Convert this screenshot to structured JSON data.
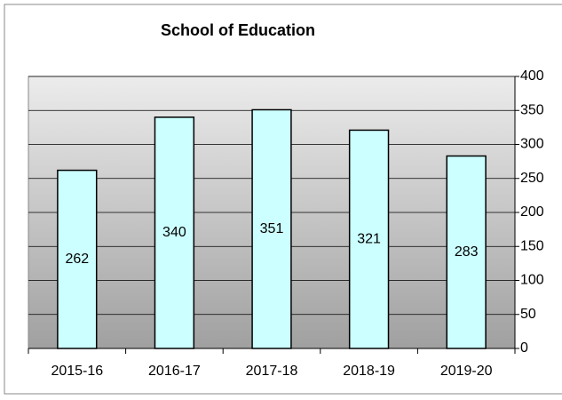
{
  "chart_data": {
    "type": "bar",
    "title": "School of Education",
    "categories": [
      "2015-16",
      "2016-17",
      "2017-18",
      "2018-19",
      "2019-20"
    ],
    "values": [
      262,
      340,
      351,
      321,
      283
    ],
    "color": "#ccffff",
    "ylim": [
      0,
      400
    ],
    "yticks": [
      0,
      50,
      100,
      150,
      200,
      250,
      300,
      350,
      400
    ],
    "grid": true
  }
}
